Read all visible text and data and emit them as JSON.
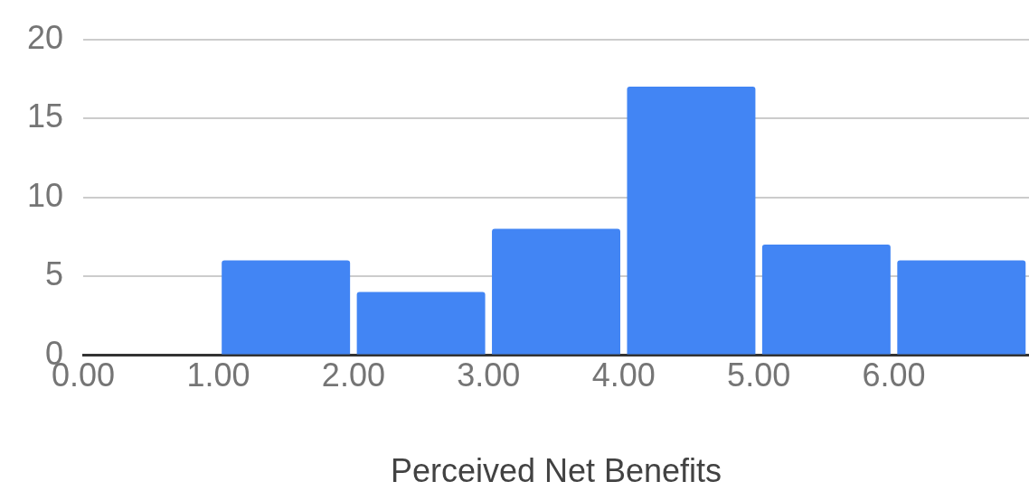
{
  "chart_data": {
    "type": "histogram",
    "xlabel": "Perceived Net Benefits",
    "bins": [
      0,
      1,
      2,
      3,
      4,
      5,
      6,
      7
    ],
    "values": [
      0,
      6,
      4,
      8,
      17,
      7,
      6
    ],
    "color": "#4285f4",
    "xlim": [
      0,
      7
    ],
    "xticks": [
      {
        "value": 0,
        "label": "0.00"
      },
      {
        "value": 1,
        "label": "1.00"
      },
      {
        "value": 2,
        "label": "2.00"
      },
      {
        "value": 3,
        "label": "3.00"
      },
      {
        "value": 4,
        "label": "4.00"
      },
      {
        "value": 5,
        "label": "5.00"
      },
      {
        "value": 6,
        "label": "6.00"
      }
    ],
    "ylim": [
      0,
      20
    ],
    "yticks": [
      0,
      5,
      10,
      15,
      20
    ],
    "grid": "y",
    "legend": false
  }
}
